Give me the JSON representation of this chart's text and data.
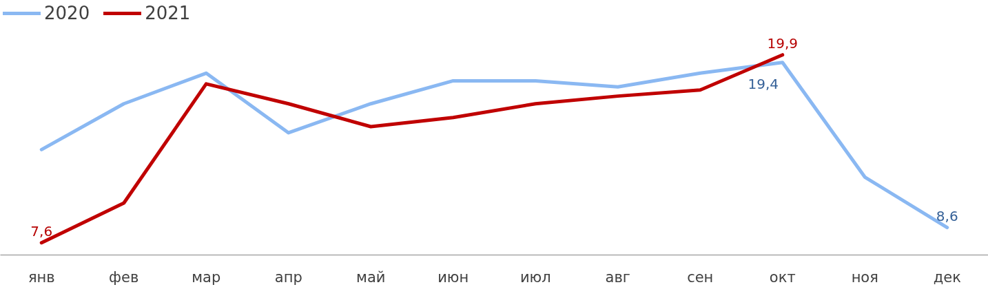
{
  "chart_data": {
    "type": "line",
    "categories": [
      "янв",
      "фев",
      "мар",
      "апр",
      "май",
      "июн",
      "июл",
      "авг",
      "сен",
      "окт",
      "ноя",
      "дек"
    ],
    "series": [
      {
        "name": "2020",
        "color": "#8ab8f2",
        "values": [
          13.7,
          16.7,
          18.7,
          14.8,
          16.7,
          18.2,
          18.2,
          17.8,
          18.7,
          19.4,
          11.9,
          8.6
        ],
        "value_labels": [
          null,
          null,
          null,
          null,
          null,
          null,
          null,
          null,
          null,
          "19,4",
          null,
          "8,6"
        ]
      },
      {
        "name": "2021",
        "color": "#c00000",
        "values": [
          7.6,
          10.2,
          18.0,
          16.7,
          15.2,
          15.8,
          16.7,
          17.2,
          17.6,
          19.9,
          null,
          null
        ],
        "value_labels": [
          "7,6",
          null,
          null,
          null,
          null,
          null,
          null,
          null,
          null,
          "19,9",
          null,
          null
        ]
      }
    ],
    "legend": "top left",
    "grid": false,
    "marker": "none",
    "line_style": "solid"
  }
}
